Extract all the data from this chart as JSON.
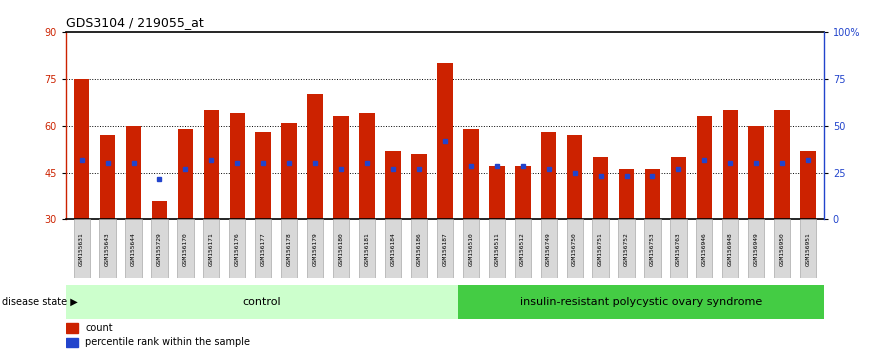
{
  "title": "GDS3104 / 219055_at",
  "samples": [
    "GSM155631",
    "GSM155643",
    "GSM155644",
    "GSM155729",
    "GSM156170",
    "GSM156171",
    "GSM156176",
    "GSM156177",
    "GSM156178",
    "GSM156179",
    "GSM156180",
    "GSM156181",
    "GSM156184",
    "GSM156186",
    "GSM156187",
    "GSM156510",
    "GSM156511",
    "GSM156512",
    "GSM156749",
    "GSM156750",
    "GSM156751",
    "GSM156752",
    "GSM156753",
    "GSM156763",
    "GSM156946",
    "GSM156948",
    "GSM156949",
    "GSM156950",
    "GSM156951"
  ],
  "bar_heights": [
    75,
    57,
    60,
    36,
    59,
    65,
    64,
    58,
    61,
    70,
    63,
    64,
    52,
    51,
    80,
    59,
    47,
    47,
    58,
    57,
    50,
    46,
    46,
    50,
    63,
    65,
    60,
    65,
    52
  ],
  "blue_dot_y": [
    49,
    48,
    48,
    43,
    46,
    49,
    48,
    48,
    48,
    48,
    46,
    48,
    46,
    46,
    55,
    47,
    47,
    47,
    46,
    45,
    44,
    44,
    44,
    46,
    49,
    48,
    48,
    48,
    49
  ],
  "control_count": 15,
  "disease_count": 14,
  "bar_color": "#cc2200",
  "blue_color": "#2244cc",
  "control_label": "control",
  "disease_label": "insulin-resistant polycystic ovary syndrome",
  "control_bg": "#ccffcc",
  "disease_bg": "#44cc44",
  "ymin": 30,
  "ymax": 90,
  "yticks_left": [
    30,
    45,
    60,
    75,
    90
  ],
  "yticks_right_vals": [
    0,
    25,
    50,
    75,
    100
  ],
  "yticks_right_labels": [
    "0",
    "25",
    "50",
    "75",
    "100%"
  ],
  "left_axis_color": "#cc2200",
  "right_axis_color": "#2244cc",
  "legend_count_label": "count",
  "legend_pct_label": "percentile rank within the sample",
  "disease_state_label": "disease state"
}
